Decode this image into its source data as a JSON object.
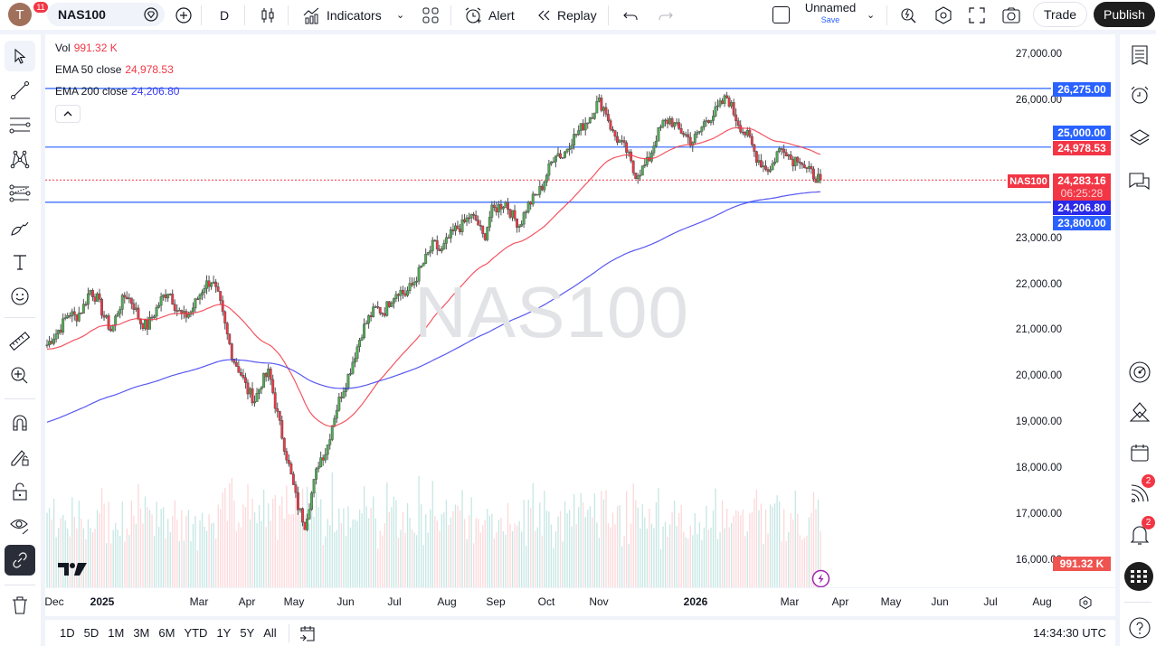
{
  "header": {
    "avatar_letter": "T",
    "avatar_badge": "11",
    "symbol": "NAS100",
    "interval": "D",
    "indicators_label": "Indicators",
    "alert_label": "Alert",
    "replay_label": "Replay",
    "layout_name": "Unnamed",
    "layout_save": "Save",
    "trade_label": "Trade",
    "publish_label": "Publish"
  },
  "legend": {
    "vol_label": "Vol",
    "vol_value": "991.32 K",
    "ema50_label": "EMA 50 close",
    "ema50_value": "24,978.53",
    "ema200_label": "EMA 200 close",
    "ema200_value": "24,206.80"
  },
  "watermark": "NAS100",
  "price_axis": {
    "ticks": [
      "27,000.00",
      "26,000.00",
      "23,000.00",
      "22,000.00",
      "21,000.00",
      "20,000.00",
      "19,000.00",
      "18,000.00",
      "17,000.00",
      "16,000.00"
    ],
    "labels": {
      "line_26275": "26,275.00",
      "line_25000": "25,000.00",
      "ema50": "24,978.53",
      "symbol_tag": "NAS100",
      "last_price": "24,283.16",
      "countdown": "06:25:28",
      "ema200": "24,206.80",
      "line_23800": "23,800.00",
      "volume": "991.32 K"
    }
  },
  "time_axis": {
    "labels": [
      "Dec",
      "2025",
      "Mar",
      "Apr",
      "May",
      "Jun",
      "Jul",
      "Aug",
      "Sep",
      "Oct",
      "Nov",
      "2026",
      "Mar",
      "Apr",
      "May",
      "Jun",
      "Jul",
      "Aug"
    ]
  },
  "bottom_bar": {
    "ranges": [
      "1D",
      "5D",
      "1M",
      "3M",
      "6M",
      "YTD",
      "1Y",
      "5Y",
      "All"
    ],
    "clock": "14:34:30 UTC"
  },
  "right_toolbar": {
    "news_badge": "2",
    "alerts_badge": "2"
  },
  "colors": {
    "up": "#4caf50",
    "down": "#f23645",
    "ema50": "#f23645",
    "ema200": "#3b3bf0",
    "hline": "#2962ff",
    "accent": "#2962ff"
  },
  "chart_data": {
    "type": "candlestick",
    "title": "NAS100 · D",
    "horizontal_lines": [
      26275,
      25000,
      23800
    ],
    "last_price": 24283.16,
    "ema50_last": 24978.53,
    "ema200_last": 24206.8,
    "ylim": [
      16000,
      27000
    ],
    "closes_approx": [
      20700,
      20900,
      21100,
      21400,
      21300,
      21500,
      21900,
      21700,
      21300,
      21000,
      21500,
      21800,
      21600,
      21200,
      21100,
      21400,
      21700,
      21900,
      21500,
      21300,
      21400,
      21700,
      22000,
      22100,
      21700,
      21000,
      20400,
      20100,
      19700,
      19500,
      19900,
      20100,
      19300,
      18600,
      17900,
      17200,
      16800,
      17500,
      18200,
      18400,
      19100,
      19600,
      20000,
      20500,
      21000,
      21300,
      21500,
      21400,
      21700,
      21900,
      21800,
      22000,
      22300,
      22600,
      22900,
      22700,
      23000,
      23200,
      23300,
      23500,
      23400,
      23000,
      23600,
      23700,
      23800,
      23500,
      23300,
      23700,
      23900,
      24100,
      24500,
      24900,
      24800,
      25100,
      25300,
      25500,
      25700,
      26000,
      25800,
      25300,
      25100,
      24900,
      24400,
      24500,
      24700,
      25200,
      25500,
      25600,
      25400,
      25300,
      25100,
      25300,
      25600,
      25700,
      25900,
      26100,
      25700,
      25400,
      25200,
      24800,
      24600,
      24500,
      24900,
      25000,
      24700,
      24800,
      24500,
      24400,
      24283
    ]
  }
}
